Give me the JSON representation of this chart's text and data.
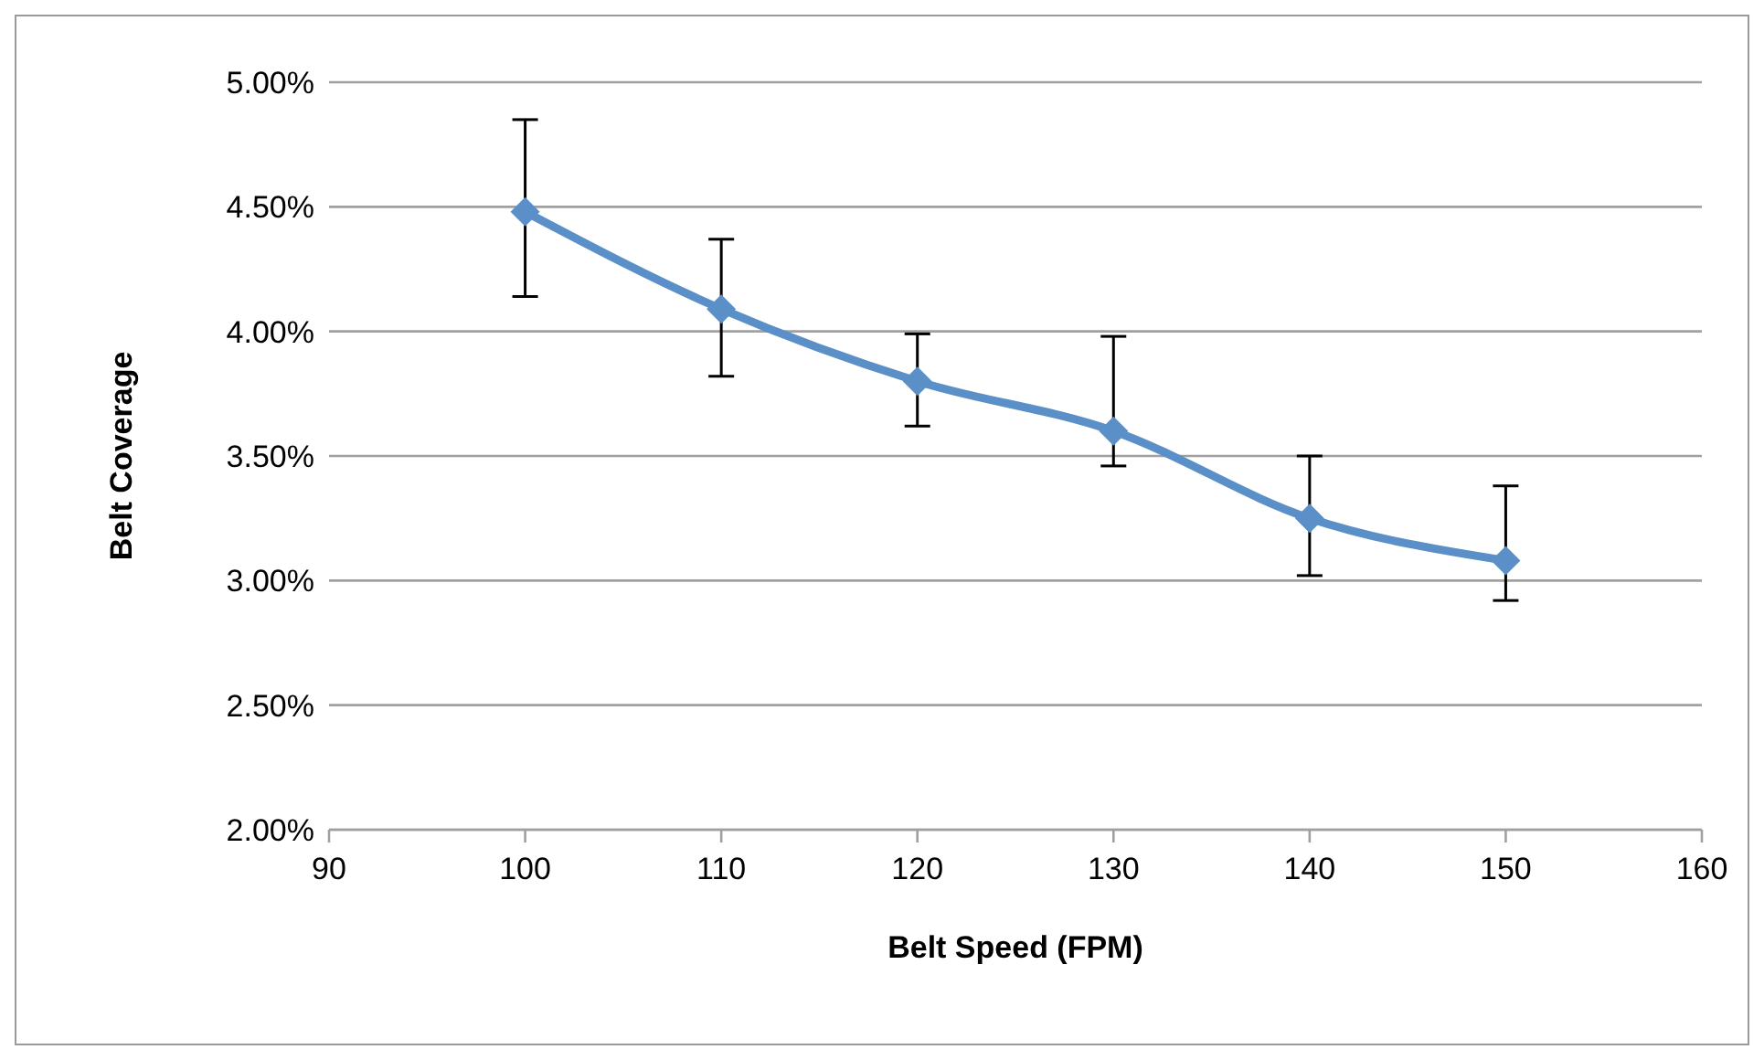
{
  "chart_data": {
    "type": "line",
    "xlabel": "Belt Speed (FPM)",
    "ylabel": "Belt Coverage",
    "x": [
      100,
      110,
      120,
      130,
      140,
      150
    ],
    "series": [
      {
        "color": "#5b8fc7",
        "values": [
          4.48,
          4.09,
          3.8,
          3.6,
          3.25,
          3.08
        ],
        "errors": [
          [
            4.14,
            4.85
          ],
          [
            3.82,
            4.37
          ],
          [
            3.62,
            3.99
          ],
          [
            3.46,
            3.98
          ],
          [
            3.02,
            3.5
          ],
          [
            2.92,
            3.38
          ]
        ]
      }
    ],
    "xlim": [
      90,
      160
    ],
    "xticks": [
      90,
      100,
      110,
      120,
      130,
      140,
      150,
      160
    ],
    "ylim": [
      2.0,
      5.0
    ],
    "yticks": [
      {
        "value": 2.0,
        "label": "2.00%"
      },
      {
        "value": 2.5,
        "label": "2.50%"
      },
      {
        "value": 3.0,
        "label": "3.00%"
      },
      {
        "value": 3.5,
        "label": "3.50%"
      },
      {
        "value": 4.0,
        "label": "4.00%"
      },
      {
        "value": 4.5,
        "label": "4.50%"
      },
      {
        "value": 5.0,
        "label": "5.00%"
      }
    ],
    "grid": "y",
    "marker": "diamond",
    "line_style": "solid"
  }
}
